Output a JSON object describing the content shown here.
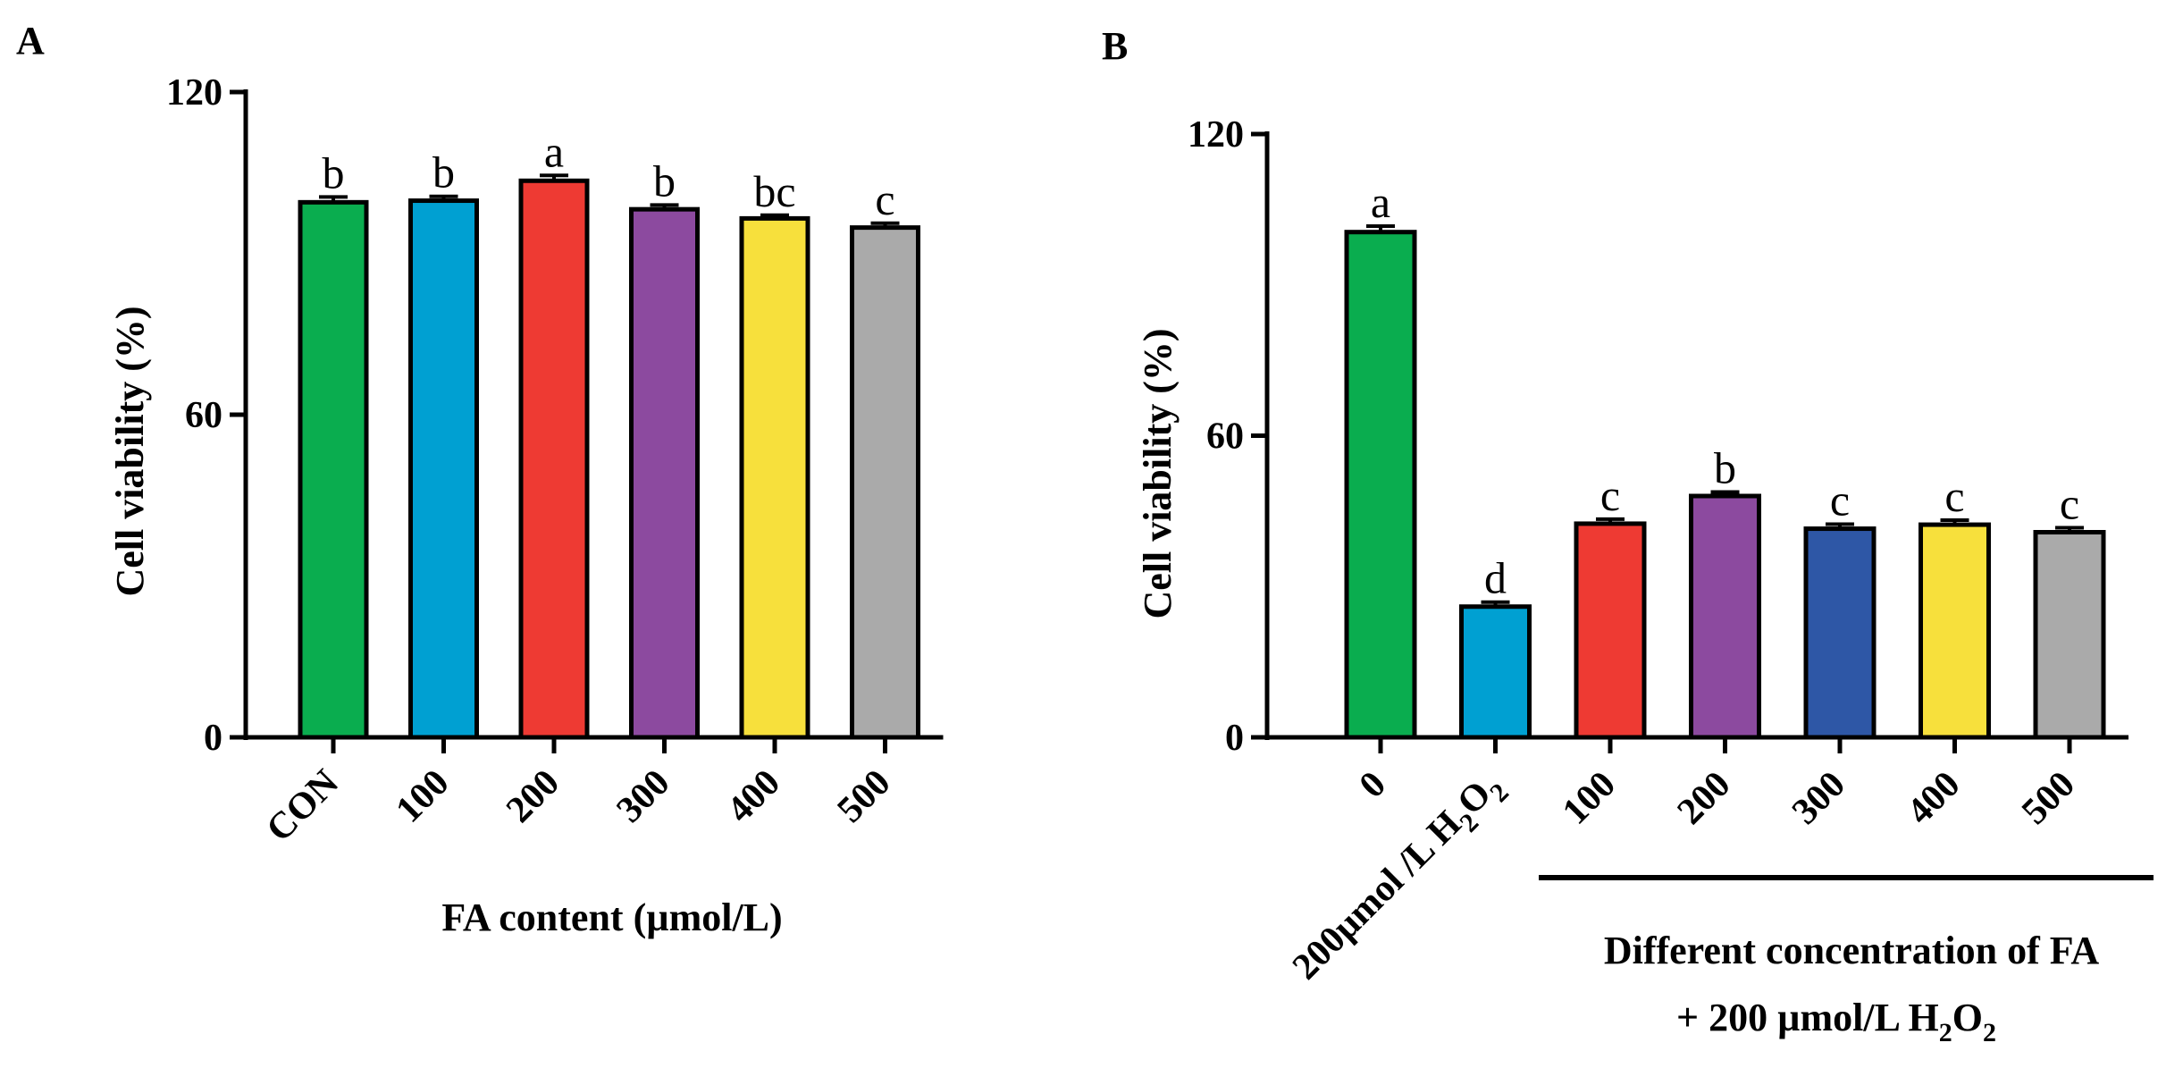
{
  "chart_data": [
    {
      "panel": "A",
      "type": "bar",
      "title": "",
      "xlabel": "FA content (µmol/L)",
      "ylabel": "Cell viability (%)",
      "ylim": [
        0,
        120
      ],
      "yticks": [
        "0",
        "60",
        "120"
      ],
      "categories": [
        "CON",
        "100",
        "200",
        "300",
        "400",
        "500"
      ],
      "values": [
        99.5,
        99.8,
        103.5,
        98.2,
        96.5,
        94.8
      ],
      "errors": [
        1.0,
        0.8,
        1.0,
        0.8,
        0.6,
        0.8
      ],
      "significance": [
        "b",
        "b",
        "a",
        "b",
        "bc",
        "c"
      ],
      "colors": [
        "#0aad4f",
        "#00a0d2",
        "#ee3a33",
        "#8c4a9f",
        "#f7e03c",
        "#aaaaaa"
      ]
    },
    {
      "panel": "B",
      "type": "bar",
      "title": "",
      "xlabel_line1": "Different concentration of FA",
      "xlabel_line2_prefix": "+ 200 µmol/L H",
      "xlabel_line2_sub1": "2",
      "xlabel_line2_mid": "O",
      "xlabel_line2_sub2": "2",
      "ylabel": "Cell viability (%)",
      "ylim": [
        0,
        120
      ],
      "yticks": [
        "0",
        "60",
        "120"
      ],
      "categories": [
        "0",
        "200µmol /L H₂O₂",
        "100",
        "200",
        "300",
        "400",
        "500"
      ],
      "values": [
        100.5,
        26.0,
        42.5,
        48.0,
        41.5,
        42.3,
        40.8
      ],
      "errors": [
        1.2,
        0.9,
        0.9,
        0.8,
        0.9,
        0.9,
        0.9
      ],
      "significance": [
        "a",
        "d",
        "c",
        "b",
        "c",
        "c",
        "c"
      ],
      "colors": [
        "#0aad4f",
        "#00a0d2",
        "#ee3a33",
        "#8c4a9f",
        "#2e57a6",
        "#f7e03c",
        "#aaaaaa"
      ]
    }
  ]
}
